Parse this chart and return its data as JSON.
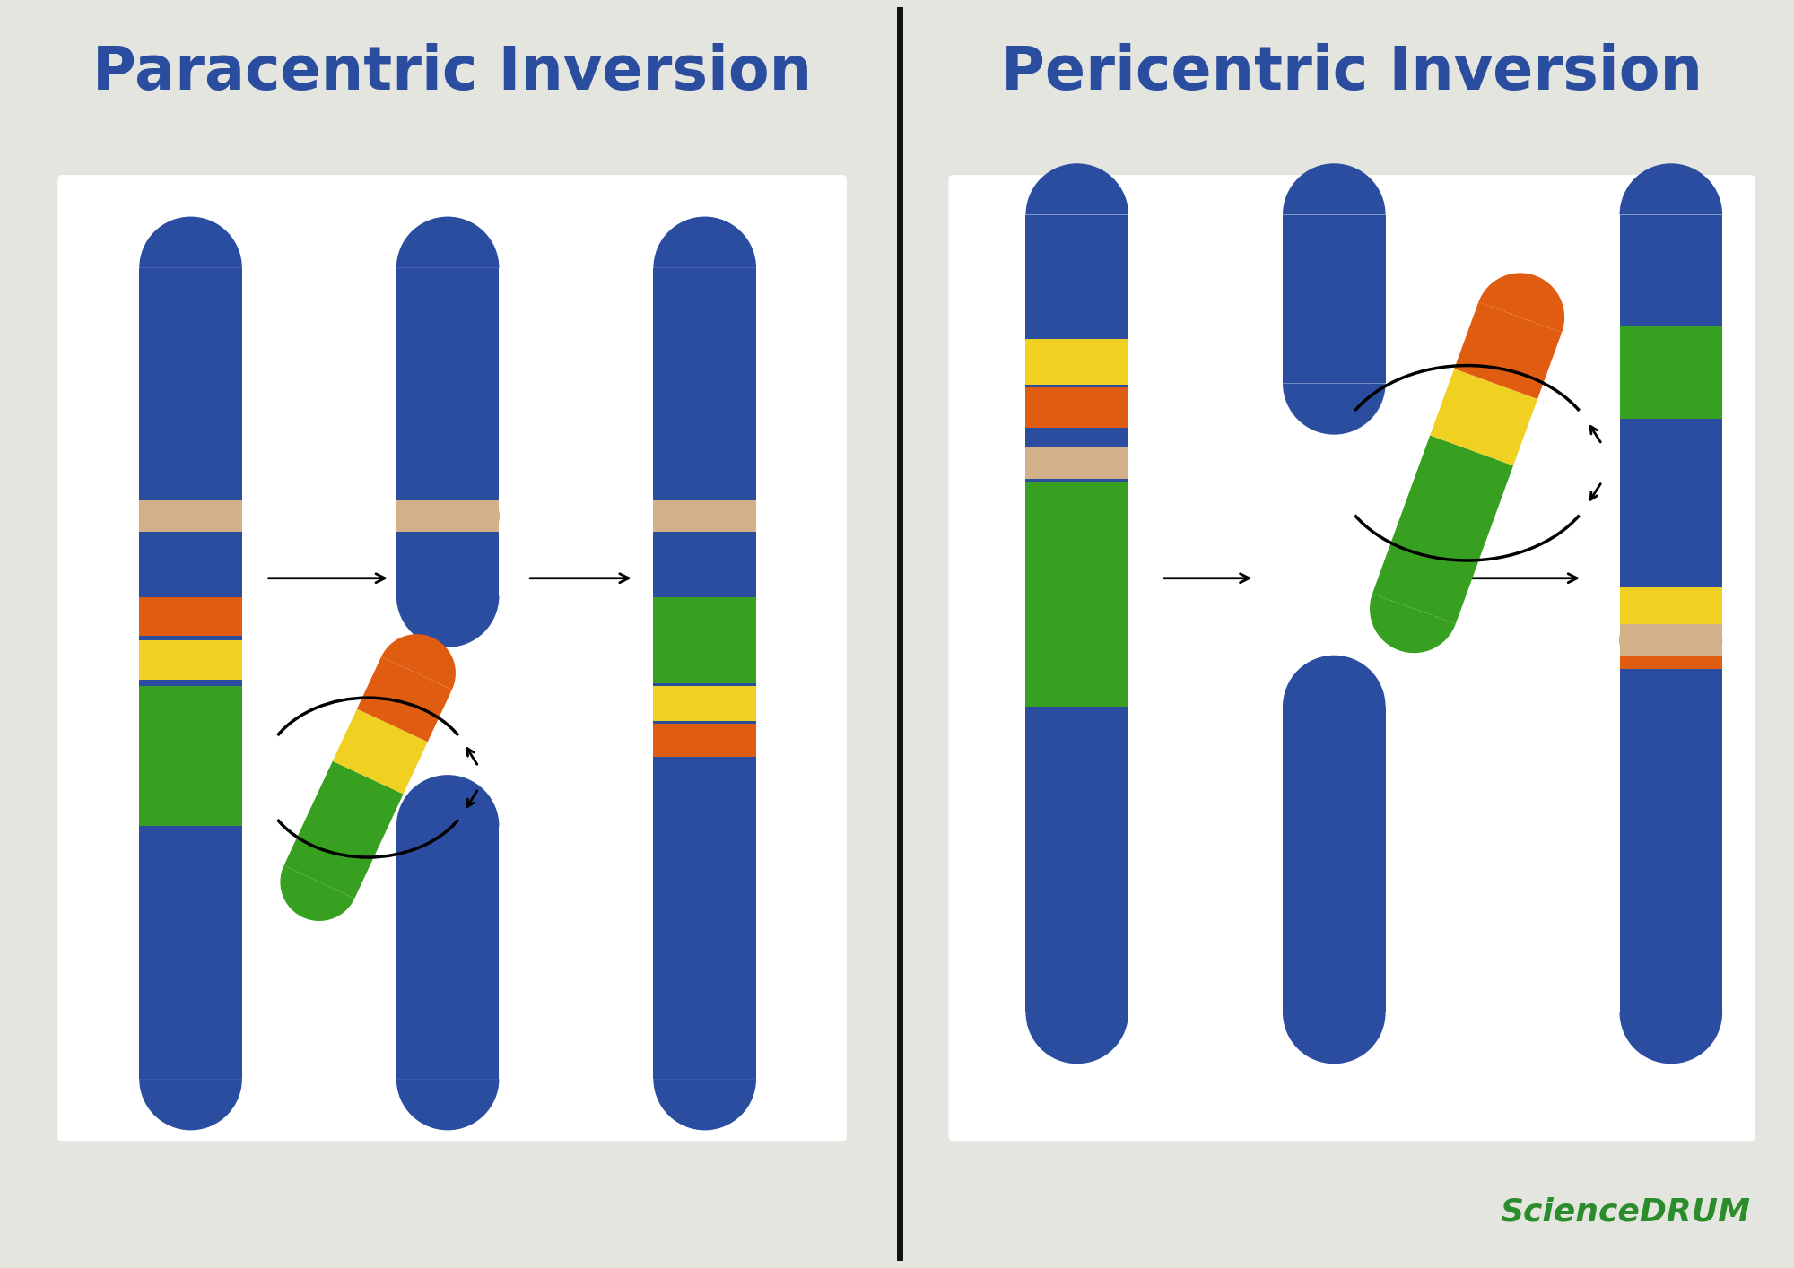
{
  "bg_color": "#e5e5df",
  "title_left": "Paracentric Inversion",
  "title_right": "Pericentric Inversion",
  "title_color": "#2b4da0",
  "title_fontsize": 48,
  "title_fontweight": "bold",
  "divider_color": "#111111",
  "white_box_color": "#ffffff",
  "chromosome_blue": "#2b4da0",
  "centromere_color": "#d4b08a",
  "band_orange": "#e05c10",
  "band_yellow": "#f0d020",
  "band_green": "#38a020",
  "watermark": "ScienceDRUM",
  "watermark_color": "#2a8c2a",
  "watermark_fontsize": 26
}
